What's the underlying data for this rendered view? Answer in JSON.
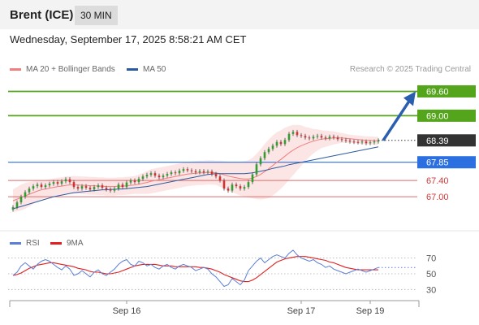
{
  "header": {
    "instrument": "Brent (ICE)",
    "timeframe": "30 MIN",
    "datetime": "Wednesday, September 17, 2025 8:58:21 AM CET"
  },
  "legend": {
    "main": [
      {
        "label": "MA 20 + Bollinger Bands",
        "color": "#f08080"
      },
      {
        "label": "MA 50",
        "color": "#2c5aa0"
      }
    ],
    "indicator": [
      {
        "label": "RSI",
        "color": "#5b7fd6"
      },
      {
        "label": "9MA",
        "color": "#e02020"
      }
    ]
  },
  "credit": "Research © 2025 Trading Central",
  "chart_data": {
    "type": "candlestick",
    "instrument": "Brent (ICE)",
    "interval": "30 MIN",
    "y_range": [
      66.4,
      69.85
    ],
    "levels": [
      {
        "value": 69.6,
        "label": "69.60",
        "color": "#55a51c",
        "style": "target"
      },
      {
        "value": 69.0,
        "label": "69.00",
        "color": "#55a51c",
        "style": "target"
      },
      {
        "value": 68.39,
        "label": "68.39",
        "color": "#333333",
        "style": "last"
      },
      {
        "value": 67.85,
        "label": "67.85",
        "color": "#2c6fe0",
        "style": "pivot"
      },
      {
        "value": 67.4,
        "label": "67.40",
        "color": "#e06a6a",
        "style": "support"
      },
      {
        "value": 67.0,
        "label": "67.00",
        "color": "#e06a6a",
        "style": "support"
      }
    ],
    "forecast_arrow": {
      "from": 68.39,
      "to": 69.6
    },
    "close": [
      66.74,
      66.86,
      67.0,
      67.11,
      67.2,
      67.26,
      67.3,
      67.24,
      67.28,
      67.32,
      67.36,
      67.32,
      67.38,
      67.43,
      67.36,
      67.24,
      67.2,
      67.26,
      67.22,
      67.18,
      67.24,
      67.28,
      67.22,
      67.18,
      67.15,
      67.2,
      67.3,
      67.24,
      67.35,
      67.4,
      67.36,
      67.44,
      67.5,
      67.54,
      67.58,
      67.52,
      67.48,
      67.52,
      67.56,
      67.6,
      67.58,
      67.64,
      67.68,
      67.65,
      67.63,
      67.6,
      67.63,
      67.6,
      67.62,
      67.56,
      67.5,
      67.4,
      67.2,
      67.15,
      67.3,
      67.26,
      67.2,
      67.24,
      67.36,
      67.55,
      67.8,
      67.95,
      68.1,
      68.18,
      68.26,
      68.35,
      68.3,
      68.4,
      68.55,
      68.6,
      68.52,
      68.5,
      68.46,
      68.44,
      68.48,
      68.5,
      68.46,
      68.44,
      68.48,
      68.46,
      68.42,
      68.4,
      68.38,
      68.36,
      68.35,
      68.34,
      68.36,
      68.32,
      68.34,
      68.36,
      68.39
    ],
    "ma20": [
      66.9,
      66.94,
      66.98,
      67.02,
      67.06,
      67.1,
      67.14,
      67.17,
      67.19,
      67.21,
      67.23,
      67.25,
      67.26,
      67.28,
      67.29,
      67.29,
      67.29,
      67.28,
      67.28,
      67.27,
      67.27,
      67.26,
      67.26,
      67.25,
      67.25,
      67.25,
      67.26,
      67.26,
      67.27,
      67.28,
      67.29,
      67.31,
      67.33,
      67.35,
      67.38,
      67.4,
      67.42,
      67.44,
      67.46,
      67.48,
      67.5,
      67.52,
      67.54,
      67.56,
      67.57,
      67.58,
      67.59,
      67.59,
      67.6,
      67.6,
      67.59,
      67.57,
      67.54,
      67.51,
      67.49,
      67.47,
      67.45,
      67.44,
      67.44,
      67.46,
      67.5,
      67.55,
      67.62,
      67.69,
      67.77,
      67.85,
      67.92,
      68.0,
      68.08,
      68.15,
      68.21,
      68.26,
      68.3,
      68.34,
      68.37,
      68.4,
      68.42,
      68.43,
      68.44,
      68.45,
      68.45,
      68.45,
      68.44,
      68.43,
      68.42,
      68.41,
      68.4,
      68.39,
      68.39,
      68.38,
      68.38
    ],
    "ma50": [
      66.7,
      66.73,
      66.76,
      66.79,
      66.82,
      66.85,
      66.88,
      66.91,
      66.94,
      66.97,
      67.0,
      67.02,
      67.04,
      67.06,
      67.08,
      67.1,
      67.11,
      67.12,
      67.13,
      67.14,
      67.15,
      67.16,
      67.17,
      67.17,
      67.18,
      67.18,
      67.19,
      67.19,
      67.2,
      67.21,
      67.22,
      67.23,
      67.24,
      67.25,
      67.27,
      67.29,
      67.31,
      67.33,
      67.35,
      67.37,
      67.39,
      67.41,
      67.43,
      67.45,
      67.47,
      67.49,
      67.51,
      67.53,
      67.55,
      67.56,
      67.57,
      67.57,
      67.57,
      67.57,
      67.57,
      67.57,
      67.57,
      67.57,
      67.58,
      67.59,
      67.61,
      67.63,
      67.65,
      67.67,
      67.7,
      67.72,
      67.74,
      67.76,
      67.79,
      67.81,
      67.83,
      67.85,
      67.87,
      67.89,
      67.91,
      67.93,
      67.95,
      67.97,
      67.99,
      68.01,
      68.03,
      68.05,
      68.07,
      68.09,
      68.11,
      68.13,
      68.15,
      68.17,
      68.19,
      68.21,
      68.23
    ],
    "bb_width": [
      0.28,
      0.3,
      0.32,
      0.32,
      0.3,
      0.28,
      0.26,
      0.24,
      0.22,
      0.22,
      0.22,
      0.22,
      0.22,
      0.22,
      0.22,
      0.22,
      0.22,
      0.22,
      0.22,
      0.22,
      0.22,
      0.22,
      0.22,
      0.22,
      0.22,
      0.22,
      0.22,
      0.22,
      0.22,
      0.22,
      0.22,
      0.24,
      0.26,
      0.28,
      0.3,
      0.3,
      0.3,
      0.3,
      0.3,
      0.3,
      0.3,
      0.3,
      0.3,
      0.3,
      0.3,
      0.3,
      0.3,
      0.3,
      0.3,
      0.3,
      0.3,
      0.32,
      0.34,
      0.36,
      0.38,
      0.4,
      0.42,
      0.44,
      0.46,
      0.5,
      0.56,
      0.62,
      0.68,
      0.72,
      0.74,
      0.74,
      0.72,
      0.7,
      0.66,
      0.62,
      0.56,
      0.5,
      0.42,
      0.36,
      0.3,
      0.26,
      0.22,
      0.2,
      0.18,
      0.16,
      0.14,
      0.12,
      0.11,
      0.1,
      0.1,
      0.1,
      0.1,
      0.1,
      0.1,
      0.1,
      0.1
    ],
    "x_ticks": [
      {
        "label": "Sep 16",
        "index": 28
      },
      {
        "label": "Sep 17",
        "index": 71
      },
      {
        "label": "Sep 19",
        "index": 88
      }
    ],
    "rsi": {
      "y_range": [
        20,
        82
      ],
      "levels": [
        70,
        50,
        30
      ],
      "rsi": [
        48,
        52,
        60,
        64,
        60,
        56,
        62,
        66,
        68,
        66,
        62,
        58,
        55,
        60,
        56,
        48,
        50,
        54,
        50,
        46,
        52,
        55,
        50,
        48,
        52,
        56,
        62,
        66,
        68,
        62,
        60,
        66,
        64,
        60,
        62,
        58,
        56,
        60,
        62,
        58,
        56,
        60,
        62,
        60,
        58,
        54,
        56,
        58,
        56,
        50,
        46,
        40,
        34,
        36,
        44,
        40,
        36,
        42,
        54,
        60,
        66,
        70,
        64,
        68,
        72,
        74,
        72,
        70,
        76,
        80,
        74,
        70,
        68,
        66,
        68,
        64,
        62,
        58,
        60,
        56,
        54,
        52,
        50,
        52,
        54,
        56,
        54,
        52,
        54,
        56,
        58
      ],
      "ma9": [
        48,
        49,
        51,
        54,
        57,
        59,
        61,
        62,
        63,
        64,
        64,
        63,
        62,
        61,
        60,
        59,
        57,
        56,
        55,
        53,
        52,
        52,
        51,
        50,
        50,
        51,
        52,
        54,
        56,
        58,
        60,
        61,
        62,
        62,
        62,
        62,
        61,
        60,
        60,
        60,
        59,
        59,
        59,
        59,
        59,
        59,
        58,
        58,
        57,
        56,
        54,
        52,
        49,
        47,
        45,
        43,
        41,
        40,
        40,
        42,
        45,
        49,
        53,
        57,
        61,
        65,
        67,
        69,
        70,
        71,
        72,
        72,
        72,
        71,
        70,
        69,
        68,
        67,
        65,
        64,
        62,
        60,
        58,
        57,
        56,
        55,
        55,
        55,
        55,
        55,
        55
      ]
    }
  }
}
